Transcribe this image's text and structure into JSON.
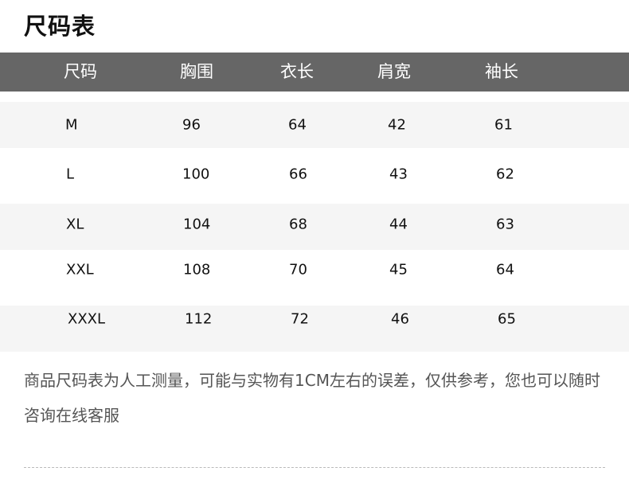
{
  "title": "尺码表",
  "table": {
    "headers": [
      "尺码",
      "胸围",
      "衣长",
      "肩宽",
      "袖长"
    ],
    "rows": [
      [
        "M",
        "96",
        "64",
        "42",
        "61"
      ],
      [
        "L",
        "100",
        "66",
        "43",
        "62"
      ],
      [
        "XL",
        "104",
        "68",
        "44",
        "63"
      ],
      [
        "XXL",
        "108",
        "70",
        "45",
        "64"
      ],
      [
        "XXXL",
        "112",
        "72",
        "46",
        "65"
      ]
    ]
  },
  "note": "商品尺码表为人工测量，可能与实物有1CM左右的误差，仅供参考，您也可以随时咨询在线客服",
  "colors": {
    "header_bg": "#666666",
    "stripe_bg": "#f5f5f5"
  }
}
